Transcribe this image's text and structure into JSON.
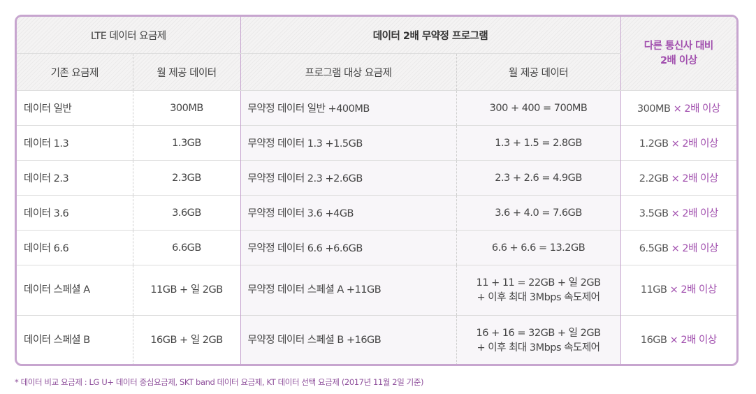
{
  "header": {
    "lte_group": "LTE 데이터 요금제",
    "program_group": "데이터 2배 무약정 프로그램",
    "compare": [
      "다른 통신사 대비",
      "2배 이상"
    ],
    "col_plan": "기존 요금제",
    "col_monthly": "월 제공 데이터",
    "col_program_plan": "프로그램 대상 요금제",
    "col_program_monthly": "월 제공 데이터"
  },
  "rows": [
    {
      "plan": "데이터 일반",
      "monthly": "300MB",
      "program": "무약정 데이터 일반 +400MB",
      "calc": [
        "300 + 400 = 700MB"
      ],
      "cmp_base": "300MB",
      "cmp_mult": "× 2배 이상"
    },
    {
      "plan": "데이터 1.3",
      "monthly": "1.3GB",
      "program": "무약정 데이터 1.3 +1.5GB",
      "calc": [
        "1.3 + 1.5 = 2.8GB"
      ],
      "cmp_base": "1.2GB",
      "cmp_mult": "× 2배 이상"
    },
    {
      "plan": "데이터 2.3",
      "monthly": "2.3GB",
      "program": "무약정 데이터 2.3 +2.6GB",
      "calc": [
        "2.3 + 2.6 = 4.9GB"
      ],
      "cmp_base": "2.2GB",
      "cmp_mult": "× 2배 이상"
    },
    {
      "plan": "데이터 3.6",
      "monthly": "3.6GB",
      "program": "무약정 데이터 3.6 +4GB",
      "calc": [
        "3.6 + 4.0 = 7.6GB"
      ],
      "cmp_base": "3.5GB",
      "cmp_mult": "× 2배 이상"
    },
    {
      "plan": "데이터 6.6",
      "monthly": "6.6GB",
      "program": "무약정 데이터 6.6 +6.6GB",
      "calc": [
        "6.6 + 6.6 = 13.2GB"
      ],
      "cmp_base": "6.5GB",
      "cmp_mult": "× 2배 이상"
    },
    {
      "plan": "데이터 스페셜 A",
      "monthly": "11GB + 일 2GB",
      "program": "무약정 데이터 스페셜 A +11GB",
      "calc": [
        "11 + 11 = 22GB + 일 2GB",
        "+ 이후 최대 3Mbps 속도제어"
      ],
      "cmp_base": "11GB",
      "cmp_mult": "× 2배 이상"
    },
    {
      "plan": "데이터 스페셜 B",
      "monthly": "16GB + 일 2GB",
      "program": "무약정 데이터 스페셜 B +16GB",
      "calc": [
        "16 + 16 = 32GB + 일 2GB",
        "+ 이후 최대 3Mbps 속도제어"
      ],
      "cmp_base": "16GB",
      "cmp_mult": "× 2배 이상"
    }
  ],
  "footnote": "* 데이터 비교 요금제 : LG U+ 데이터 중심요금제, SKT band 데이터 요금제, KT 데이터 선택 요금제 (2017년 11월 2일 기준)",
  "colors": {
    "accent": "#a14fae",
    "border": "#c7a5cf",
    "header_bg": "#f4f3f3"
  }
}
